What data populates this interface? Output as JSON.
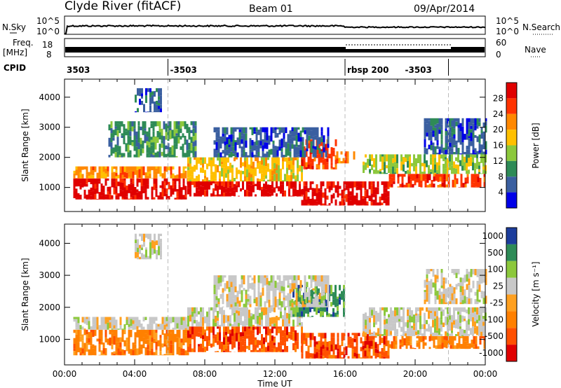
{
  "header": {
    "station": "Clyde River (fitACF)",
    "beam": "Beam 01",
    "date": "09/Apr/2014"
  },
  "noise_panel": {
    "left_label": "N.Sky",
    "left_ticks": [
      "10^5",
      "10^0"
    ],
    "right_ticks": [
      "10^5",
      "10^0"
    ],
    "right_label": "N.Search"
  },
  "freq_panel": {
    "left_label_1": "Freq.",
    "left_label_2": "[MHz]",
    "left_ticks": [
      "18",
      "8"
    ],
    "right_ticks": [
      "60",
      "0"
    ],
    "right_label": "Nave"
  },
  "cpid_panel": {
    "label": "CPID",
    "segments": [
      {
        "text": "3503",
        "t": 0.0
      },
      {
        "text": "-3503",
        "t": 5.9
      },
      {
        "text": "rbsp 200",
        "t": 16.0
      },
      {
        "text": "-3503",
        "t": 19.3
      }
    ],
    "dividers": [
      5.9,
      16.0,
      21.9
    ]
  },
  "chart_data": [
    {
      "type": "heatmap",
      "panel": "power",
      "ylabel": "Slant Range [km]",
      "ylim": [
        200,
        4600
      ],
      "yticks": [
        1000,
        2000,
        3000,
        4000
      ],
      "xlim": [
        0,
        24
      ],
      "colorbar": {
        "label": "Power [dB]",
        "ticks": [
          "28",
          "24",
          "20",
          "16",
          "12",
          "8",
          "4"
        ],
        "colors": [
          "#e00000",
          "#ff3300",
          "#ff8800",
          "#ffc000",
          "#8cc83c",
          "#2e8b57",
          "#3a5fa0",
          "#0000e8"
        ]
      },
      "blobs": [
        {
          "t0": 0.5,
          "t1": 7.0,
          "r0": 600,
          "r1": 1300,
          "level": 0
        },
        {
          "t0": 7.0,
          "t1": 13.5,
          "r0": 700,
          "r1": 1200,
          "level": 0
        },
        {
          "t0": 13.5,
          "t1": 18.5,
          "r0": 400,
          "r1": 1200,
          "level": 0
        },
        {
          "t0": 18.5,
          "t1": 24.0,
          "r0": 1000,
          "r1": 1450,
          "level": 1
        },
        {
          "t0": 0.5,
          "t1": 7.0,
          "r0": 1300,
          "r1": 1700,
          "level": 2
        },
        {
          "t0": 7.0,
          "t1": 13.5,
          "r0": 1200,
          "r1": 2000,
          "level": 3
        },
        {
          "t0": 13.5,
          "t1": 15.5,
          "r0": 1600,
          "r1": 2600,
          "level": 1
        },
        {
          "t0": 15.5,
          "t1": 16.5,
          "r0": 1800,
          "r1": 2200,
          "level": 2
        },
        {
          "t0": 17.0,
          "t1": 24.0,
          "r0": 1450,
          "r1": 2100,
          "level": 4
        },
        {
          "t0": 8.5,
          "t1": 15.0,
          "r0": 2000,
          "r1": 3000,
          "level": 6
        },
        {
          "t0": 20.5,
          "t1": 24.0,
          "r0": 2100,
          "r1": 3300,
          "level": 6
        },
        {
          "t0": 4.0,
          "t1": 5.5,
          "r0": 3500,
          "r1": 4300,
          "level": 6
        },
        {
          "t0": 2.5,
          "t1": 7.5,
          "r0": 2000,
          "r1": 3200,
          "level": 5
        }
      ]
    },
    {
      "type": "heatmap",
      "panel": "velocity",
      "ylabel": "Slant Range [km]",
      "ylim": [
        200,
        4600
      ],
      "yticks": [
        1000,
        2000,
        3000,
        4000
      ],
      "xlim": [
        0,
        24
      ],
      "xticks": [
        "00:00",
        "04:00",
        "08:00",
        "12:00",
        "16:00",
        "20:00",
        "00:00"
      ],
      "xlabel": "Time UT",
      "colorbar": {
        "label": "Velocity [m s⁻¹]",
        "ticks": [
          "1000",
          "500",
          "100",
          "25",
          "-25",
          "-100",
          "-500",
          "-1000"
        ],
        "colors": [
          "#1c3d9c",
          "#2e8b57",
          "#8cc83c",
          "#c8c8c8",
          "#ffa020",
          "#ff8000",
          "#ff5000",
          "#e00000"
        ]
      },
      "blobs": [
        {
          "t0": 0.5,
          "t1": 7.0,
          "r0": 500,
          "r1": 1300,
          "level": 5
        },
        {
          "t0": 7.0,
          "t1": 13.5,
          "r0": 600,
          "r1": 1400,
          "level": 6
        },
        {
          "t0": 13.5,
          "t1": 18.5,
          "r0": 400,
          "r1": 1200,
          "level": 6
        },
        {
          "t0": 18.5,
          "t1": 24.0,
          "r0": 700,
          "r1": 1100,
          "level": 5
        },
        {
          "t0": 0.5,
          "t1": 7.0,
          "r0": 1300,
          "r1": 1700,
          "level": 3
        },
        {
          "t0": 7.0,
          "t1": 13.5,
          "r0": 1400,
          "r1": 2000,
          "level": 3
        },
        {
          "t0": 13.0,
          "t1": 16.0,
          "r0": 1700,
          "r1": 2700,
          "level": 1
        },
        {
          "t0": 17.0,
          "t1": 24.0,
          "r0": 1100,
          "r1": 2000,
          "level": 3
        },
        {
          "t0": 8.5,
          "t1": 15.0,
          "r0": 2000,
          "r1": 3000,
          "level": 3
        },
        {
          "t0": 4.0,
          "t1": 5.5,
          "r0": 3500,
          "r1": 4300,
          "level": 3
        },
        {
          "t0": 20.5,
          "t1": 24.0,
          "r0": 2100,
          "r1": 3200,
          "level": 3
        }
      ]
    }
  ]
}
